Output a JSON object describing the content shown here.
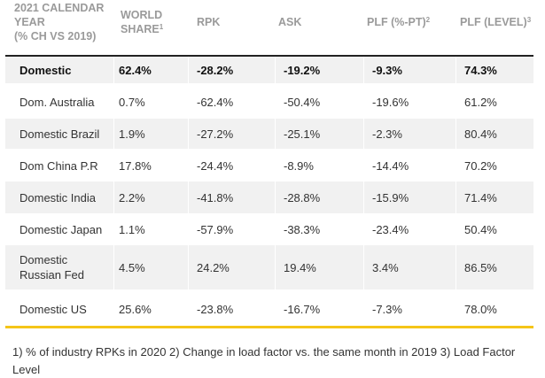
{
  "header": {
    "year_line1": "2021 CALENDAR",
    "year_line2": "YEAR",
    "year_line3": "(% CH VS 2019)",
    "world_share_line1": "WORLD",
    "world_share_line2": "SHARE",
    "world_share_sup": "1",
    "rpk": "RPK",
    "ask": "ASK",
    "plf_pt": "PLF (%-PT)",
    "plf_pt_sup": "2",
    "plf_level": "PLF (LEVEL)",
    "plf_level_sup": "3"
  },
  "rows": [
    {
      "market": "Domestic",
      "world_share": "62.4%",
      "rpk": "-28.2%",
      "ask": "-19.2%",
      "plf_pt": "-9.3%",
      "plf_level": "74.3%"
    },
    {
      "market": "Dom. Australia",
      "world_share": "0.7%",
      "rpk": "-62.4%",
      "ask": "-50.4%",
      "plf_pt": "-19.6%",
      "plf_level": "61.2%"
    },
    {
      "market": "Domestic Brazil",
      "world_share": "1.9%",
      "rpk": "-27.2%",
      "ask": "-25.1%",
      "plf_pt": "-2.3%",
      "plf_level": "80.4%"
    },
    {
      "market": "Dom China P.R",
      "world_share": "17.8%",
      "rpk": "-24.4%",
      "ask": "-8.9%",
      "plf_pt": "-14.4%",
      "plf_level": "70.2%"
    },
    {
      "market": "Domestic India",
      "world_share": "2.2%",
      "rpk": "-41.8%",
      "ask": "-28.8%",
      "plf_pt": "-15.9%",
      "plf_level": "71.4%"
    },
    {
      "market": "Domestic Japan",
      "world_share": "1.1%",
      "rpk": "-57.9%",
      "ask": "-38.3%",
      "plf_pt": "-23.4%",
      "plf_level": "50.4%"
    },
    {
      "market": "Domestic Russian Fed",
      "world_share": "4.5%",
      "rpk": "24.2%",
      "ask": "19.4%",
      "plf_pt": "3.4%",
      "plf_level": "86.5%"
    },
    {
      "market": "Domestic US",
      "world_share": "25.6%",
      "rpk": "-23.8%",
      "ask": "-16.7%",
      "plf_pt": "-7.3%",
      "plf_level": "78.0%"
    }
  ],
  "footnote": "1) % of industry RPKs in 2020   2) Change in load factor vs. the same month in 2019   3) Load Factor Level"
}
